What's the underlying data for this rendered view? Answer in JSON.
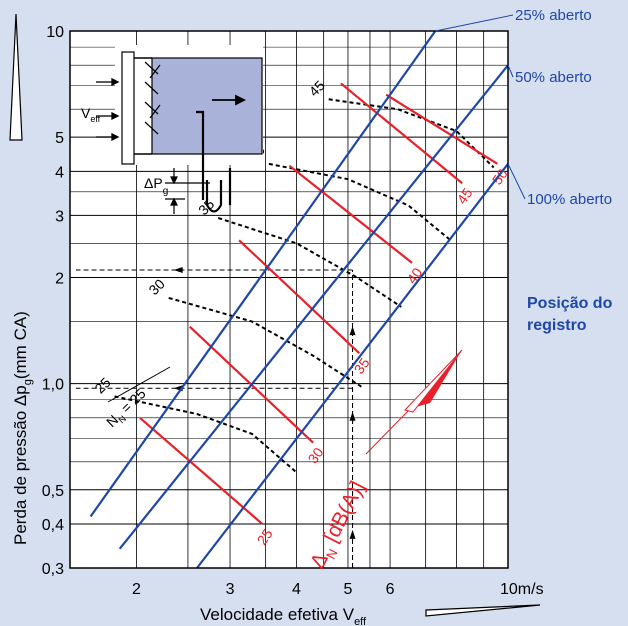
{
  "chart_data": {
    "type": "line",
    "xscale": "log",
    "yscale": "log",
    "xlim": [
      1.5,
      10
    ],
    "ylim": [
      0.3,
      10
    ],
    "xlabel": "Velocidade efetiva V",
    "xlabel_sub": "eff",
    "ylabel": "Perda de pressão Δp",
    "ylabel_sub": "g",
    "ylabel_unit": "(mm CA)",
    "x_ticks": [
      {
        "value": 2,
        "label": "2"
      },
      {
        "value": 3,
        "label": "3"
      },
      {
        "value": 4,
        "label": "4"
      },
      {
        "value": 5,
        "label": "5"
      },
      {
        "value": 6,
        "label": "6"
      },
      {
        "value": 10,
        "label": "10m/s"
      }
    ],
    "y_ticks": [
      {
        "value": 0.3,
        "label": "0,3"
      },
      {
        "value": 0.4,
        "label": "0,4"
      },
      {
        "value": 0.5,
        "label": "0,5"
      },
      {
        "value": 1.0,
        "label": "1,0"
      },
      {
        "value": 2,
        "label": "2"
      },
      {
        "value": 3,
        "label": "3"
      },
      {
        "value": 4,
        "label": "4"
      },
      {
        "value": 5,
        "label": "5"
      },
      {
        "value": 10,
        "label": "10"
      }
    ],
    "damper_lines": [
      {
        "name": "25% aberto",
        "points": [
          [
            1.64,
            0.42
          ],
          [
            7.3,
            10
          ]
        ]
      },
      {
        "name": "50% aberto",
        "points": [
          [
            1.86,
            0.34
          ],
          [
            10,
            8
          ]
        ]
      },
      {
        "name": "100% aberto",
        "points": [
          [
            2.6,
            0.3
          ],
          [
            10,
            4.2
          ]
        ]
      }
    ],
    "noise_curves": [
      {
        "label": "25",
        "points": [
          [
            1.82,
            0.92
          ],
          [
            2.6,
            0.82
          ],
          [
            3.3,
            0.72
          ],
          [
            4.0,
            0.56
          ]
        ]
      },
      {
        "label": "30",
        "points": [
          [
            2.3,
            1.75
          ],
          [
            3.3,
            1.5
          ],
          [
            4.3,
            1.2
          ],
          [
            5.3,
            0.98
          ]
        ]
      },
      {
        "label": "35",
        "points": [
          [
            2.85,
            2.95
          ],
          [
            4.0,
            2.5
          ],
          [
            5.2,
            2.0
          ],
          [
            6.3,
            1.65
          ]
        ]
      },
      {
        "label": "40",
        "points": [
          [
            3.55,
            4.2
          ],
          [
            5.0,
            3.8
          ],
          [
            6.5,
            3.2
          ],
          [
            7.8,
            2.55
          ]
        ]
      },
      {
        "label": "45",
        "points": [
          [
            4.6,
            6.4
          ],
          [
            6.2,
            6.0
          ],
          [
            8.0,
            5.2
          ],
          [
            9.4,
            4.1
          ]
        ]
      }
    ],
    "red_segments": [
      {
        "label": "25",
        "points": [
          [
            2.03,
            0.8
          ],
          [
            3.45,
            0.4
          ]
        ]
      },
      {
        "label": "30",
        "points": [
          [
            2.52,
            1.45
          ],
          [
            4.3,
            0.68
          ]
        ]
      },
      {
        "label": "35",
        "points": [
          [
            3.12,
            2.55
          ],
          [
            5.25,
            1.22
          ]
        ]
      },
      {
        "label": "40",
        "points": [
          [
            3.88,
            4.15
          ],
          [
            6.6,
            2.2
          ]
        ]
      },
      {
        "label": "45",
        "points": [
          [
            4.85,
            7.1
          ],
          [
            8.2,
            3.7
          ]
        ]
      },
      {
        "label": "50",
        "points": [
          [
            5.9,
            6.6
          ],
          [
            9.55,
            4.2
          ]
        ]
      }
    ],
    "noise_label": "N",
    "noise_label_sub": "N",
    "noise_label_eq": " = 25",
    "delta_label": "Δ",
    "delta_label_sub": "N",
    "delta_label_unit": " [dB(A)]",
    "position_label_line1": "Posição do",
    "position_label_line2": "registro",
    "example_guides": [
      {
        "v": 5.1,
        "from_dp": 0.3,
        "to_dp": 2.1
      },
      {
        "v": 5.1,
        "from_dp": 0.3,
        "to_dp": 0.97
      }
    ],
    "inset": {
      "veff_label": "V",
      "veff_sub": "eff",
      "dp_label": "ΔP",
      "dp_sub": "g"
    }
  },
  "colors": {
    "background": "#d6dff0",
    "damper_line": "#1f47a6",
    "red": "#e8202a",
    "label_blue": "#1f47a6",
    "grid": "#000000",
    "inset_fill": "#a9b3d9"
  }
}
